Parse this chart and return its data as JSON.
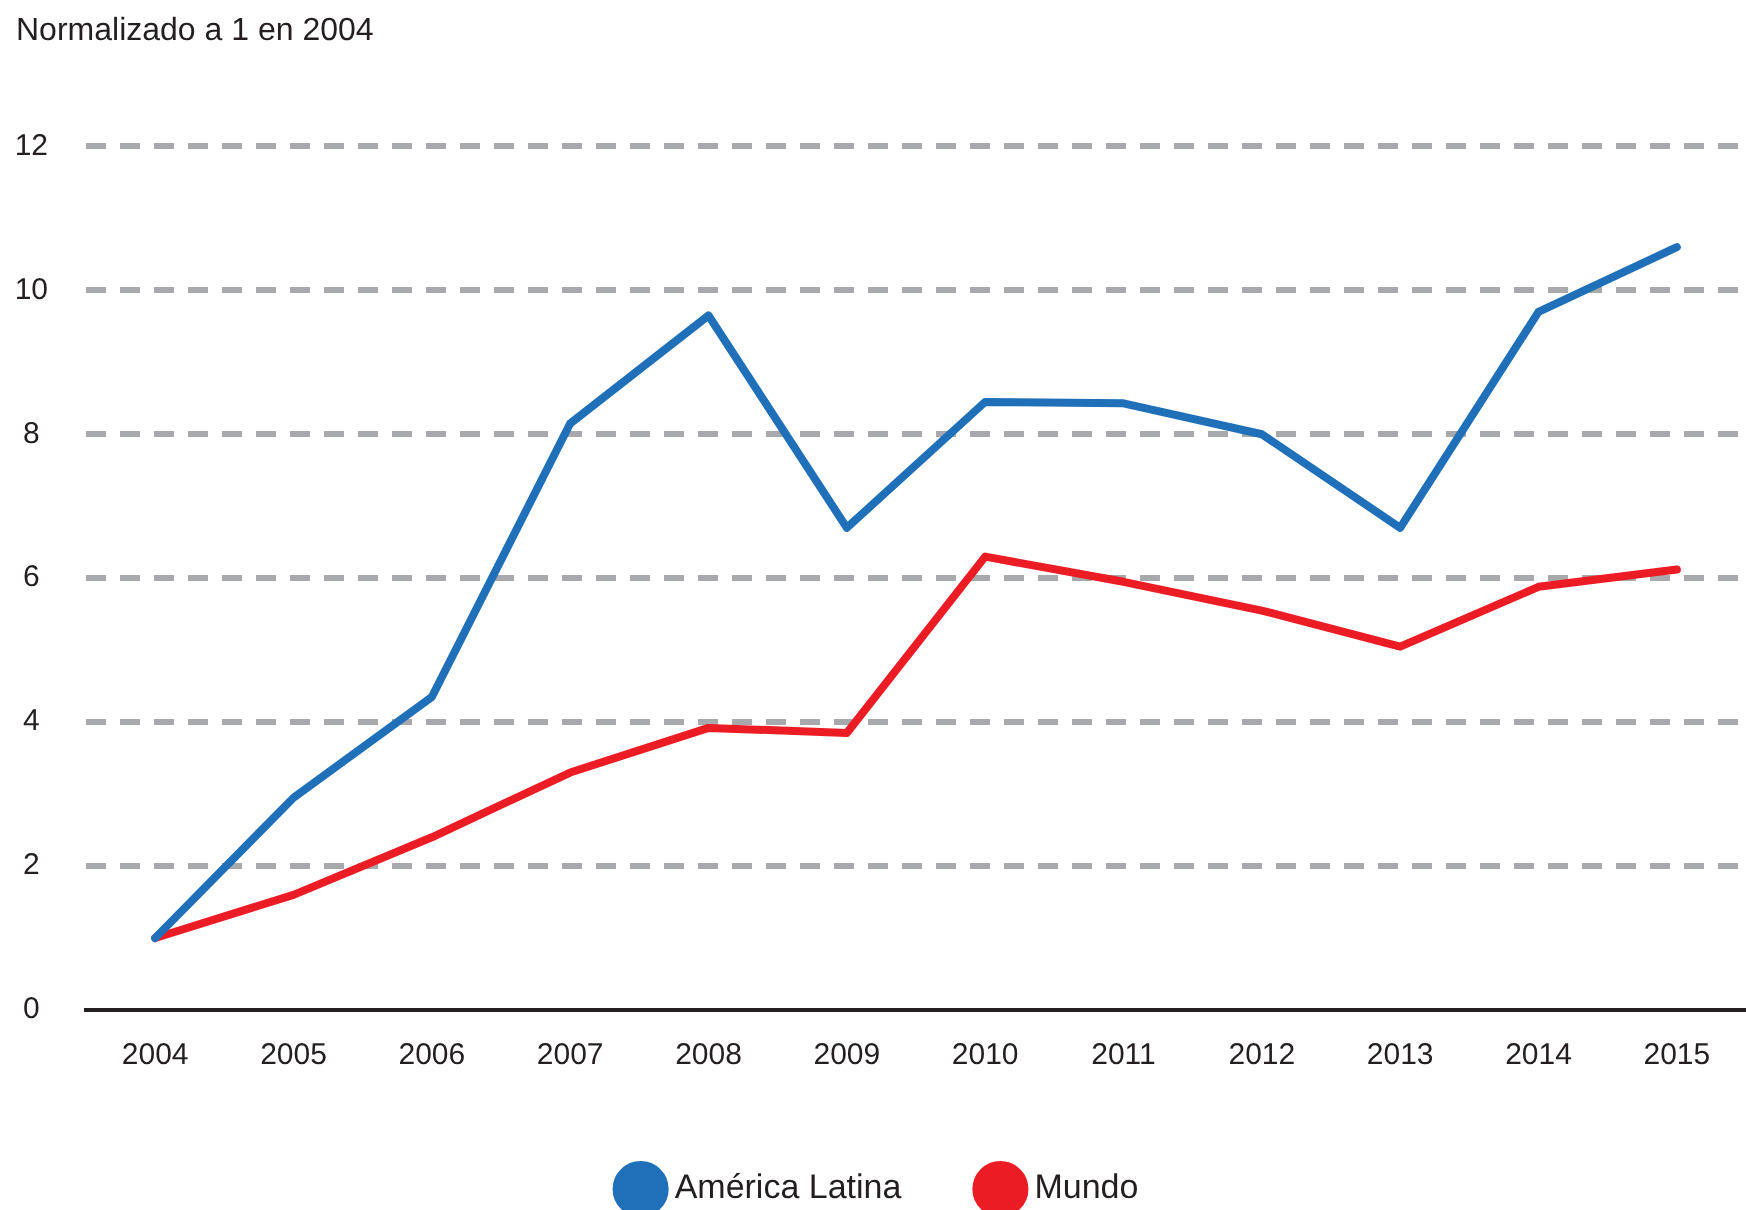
{
  "chart_data": {
    "type": "line",
    "ylabel": "Normalizado a 1 en 2004",
    "categories": [
      "2004",
      "2005",
      "2006",
      "2007",
      "2008",
      "2009",
      "2010",
      "2011",
      "2012",
      "2013",
      "2014",
      "2015"
    ],
    "series": [
      {
        "name": "América Latina",
        "color": "#1f70b8",
        "values": [
          1,
          2.95,
          4.35,
          8.15,
          9.65,
          6.7,
          8.45,
          8.43,
          8.0,
          6.7,
          9.7,
          10.6
        ]
      },
      {
        "name": "Mundo",
        "color": "#ec1c24",
        "values": [
          1,
          1.6,
          2.4,
          3.3,
          3.92,
          3.85,
          6.3,
          5.95,
          5.55,
          5.05,
          5.88,
          6.12
        ]
      }
    ],
    "ylim": [
      0,
      12
    ],
    "yticks": [
      0,
      2,
      4,
      6,
      8,
      10,
      12
    ],
    "grid": "y",
    "legend": "bottom",
    "line_style": "solid",
    "marker": "none"
  }
}
